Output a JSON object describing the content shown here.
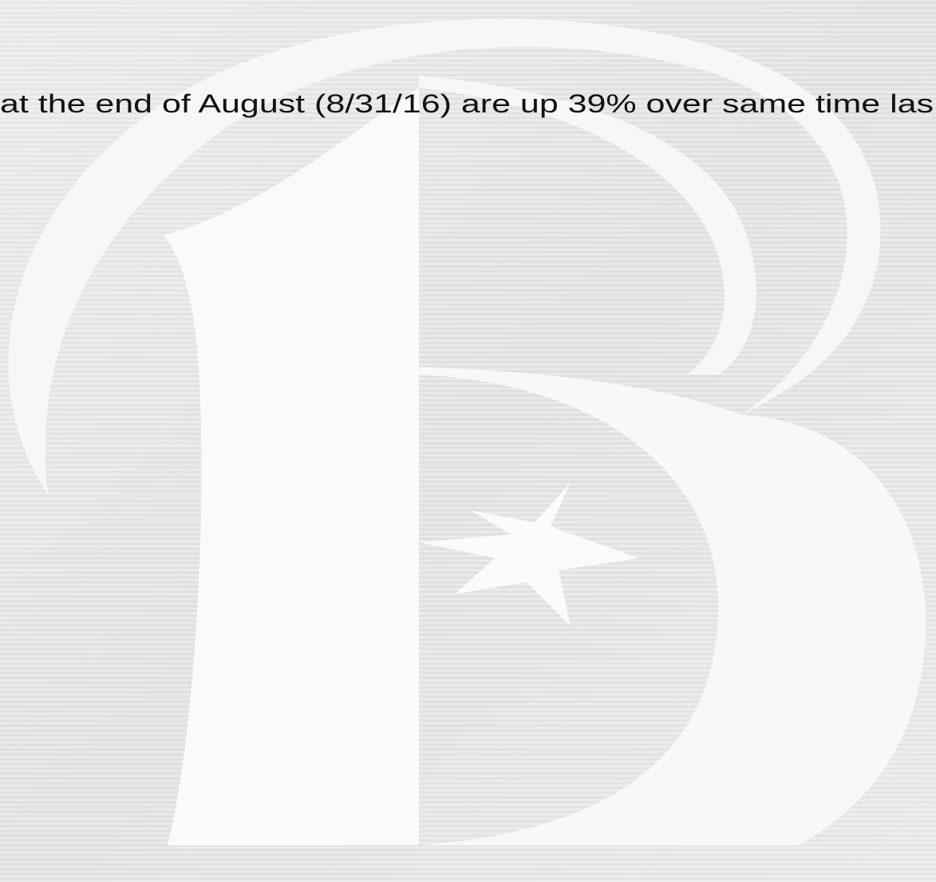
{
  "text": "at the end of August (8/31/16) are up 39% over same time las"
}
